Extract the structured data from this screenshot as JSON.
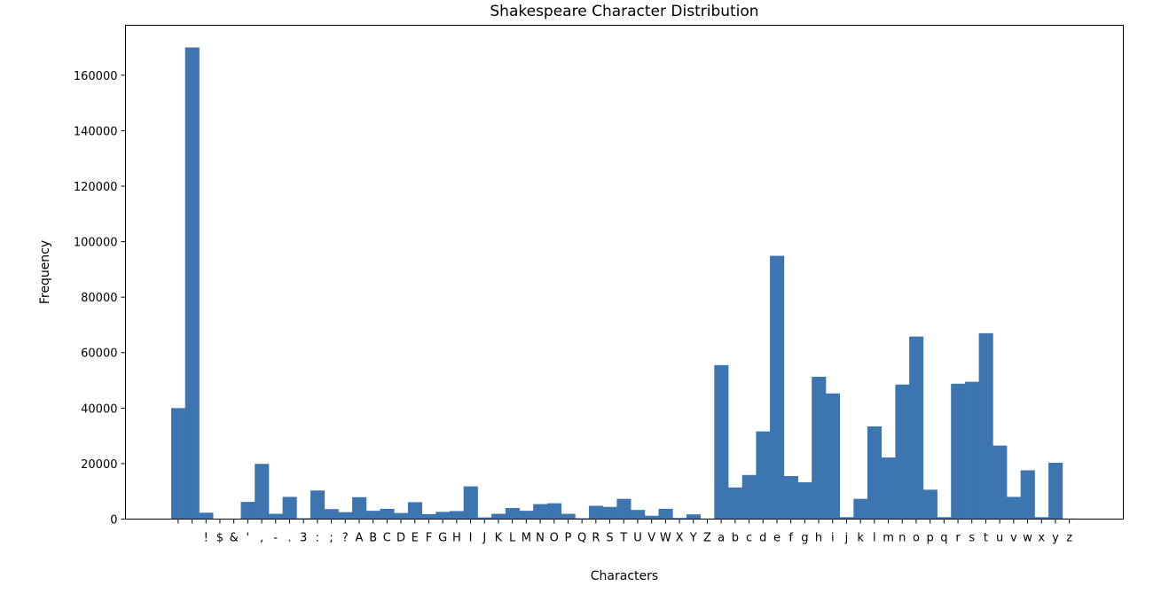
{
  "chart_data": {
    "type": "bar",
    "title": "Shakespeare Character Distribution",
    "xlabel": "Characters",
    "ylabel": "Frequency",
    "ylim": [
      0,
      178000
    ],
    "yticks": [
      0,
      20000,
      40000,
      60000,
      80000,
      100000,
      120000,
      140000,
      160000
    ],
    "grid": false,
    "legend": "none",
    "bar_color": "#3c75af",
    "categories": [
      "\n",
      " ",
      "!",
      "$",
      "&",
      "'",
      ",",
      "-",
      ".",
      "3",
      ":",
      ";",
      "?",
      "A",
      "B",
      "C",
      "D",
      "E",
      "F",
      "G",
      "H",
      "I",
      "J",
      "K",
      "L",
      "M",
      "N",
      "O",
      "P",
      "Q",
      "R",
      "S",
      "T",
      "U",
      "V",
      "W",
      "X",
      "Y",
      "Z",
      "a",
      "b",
      "c",
      "d",
      "e",
      "f",
      "g",
      "h",
      "i",
      "j",
      "k",
      "l",
      "m",
      "n",
      "o",
      "p",
      "q",
      "r",
      "s",
      "t",
      "u",
      "v",
      "w",
      "x",
      "y",
      "z"
    ],
    "values": [
      40000,
      170000,
      2300,
      0,
      0,
      6200,
      19900,
      1900,
      8000,
      300,
      10300,
      3600,
      2500,
      7900,
      3000,
      3700,
      2200,
      6100,
      1800,
      2600,
      2900,
      11800,
      600,
      1900,
      4000,
      3000,
      5400,
      5700,
      1900,
      300,
      4800,
      4400,
      7300,
      3300,
      1200,
      3700,
      400,
      1700,
      200,
      55500,
      11400,
      15900,
      31600,
      94900,
      15500,
      13300,
      51300,
      45300,
      700,
      7300,
      33400,
      22200,
      48500,
      65800,
      10600,
      700,
      48800,
      49500,
      67000,
      26500,
      8000,
      17600,
      700,
      20300,
      200
    ]
  }
}
